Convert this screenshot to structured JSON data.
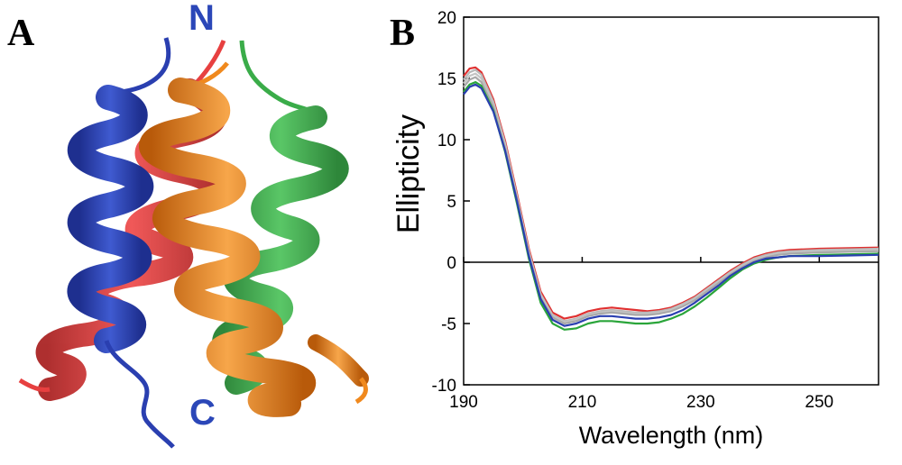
{
  "panel_a": {
    "letter": "A",
    "n_label": "N",
    "c_label": "C",
    "colors": {
      "helix1": "#2a3fb0",
      "helix2": "#e63030",
      "helix3": "#2aa53a",
      "helix4": "#f0891e",
      "label": "#2b47b8"
    },
    "structure": "four-helix-bundle ribbon"
  },
  "panel_b": {
    "letter": "B"
  },
  "chart_data": {
    "type": "line",
    "title": "",
    "xlabel": "Wavelength (nm)",
    "ylabel": "Ellipticity",
    "xlim": [
      190,
      260
    ],
    "ylim": [
      -10,
      20
    ],
    "x_ticks": [
      190,
      210,
      230,
      250
    ],
    "y_ticks": [
      -10,
      -5,
      0,
      5,
      10,
      15,
      20
    ],
    "grid": false,
    "zero_line": true,
    "x": [
      190,
      191,
      192,
      193,
      195,
      197,
      199,
      201,
      203,
      205,
      207,
      209,
      211,
      213,
      215,
      217,
      219,
      221,
      223,
      225,
      227,
      229,
      231,
      233,
      235,
      237,
      239,
      241,
      243,
      245,
      250,
      255,
      260
    ],
    "series": [
      {
        "color": "#e03030",
        "values": [
          15.2,
          15.8,
          15.9,
          15.5,
          13.3,
          9.9,
          5.6,
          1.1,
          -2.4,
          -4.1,
          -4.6,
          -4.4,
          -4.0,
          -3.8,
          -3.7,
          -3.8,
          -3.9,
          -4.0,
          -3.9,
          -3.7,
          -3.3,
          -2.8,
          -2.1,
          -1.4,
          -0.7,
          -0.1,
          0.4,
          0.7,
          0.9,
          1.0,
          1.1,
          1.15,
          1.2
        ]
      },
      {
        "color": "#b8b8b8",
        "values": [
          14.9,
          15.5,
          15.7,
          15.3,
          13.1,
          9.7,
          5.4,
          0.9,
          -2.6,
          -4.3,
          -4.8,
          -4.6,
          -4.2,
          -4.0,
          -3.9,
          -4.0,
          -4.1,
          -4.1,
          -4.0,
          -3.8,
          -3.4,
          -2.9,
          -2.2,
          -1.5,
          -0.8,
          -0.2,
          0.3,
          0.6,
          0.8,
          0.9,
          1.0,
          1.05,
          1.1
        ]
      },
      {
        "color": "#c4c4c4",
        "values": [
          14.6,
          15.2,
          15.4,
          15.0,
          12.9,
          9.5,
          5.3,
          0.8,
          -2.7,
          -4.4,
          -4.9,
          -4.7,
          -4.3,
          -4.1,
          -4.0,
          -4.1,
          -4.2,
          -4.2,
          -4.1,
          -3.9,
          -3.5,
          -3.0,
          -2.3,
          -1.6,
          -0.9,
          -0.3,
          0.2,
          0.5,
          0.7,
          0.8,
          0.9,
          0.95,
          1.0
        ]
      },
      {
        "color": "#a9a9a9",
        "values": [
          14.3,
          14.9,
          15.1,
          14.7,
          12.7,
          9.3,
          5.1,
          0.6,
          -2.9,
          -4.5,
          -5.0,
          -4.8,
          -4.4,
          -4.2,
          -4.1,
          -4.2,
          -4.3,
          -4.3,
          -4.2,
          -4.0,
          -3.6,
          -3.1,
          -2.4,
          -1.7,
          -1.0,
          -0.4,
          0.1,
          0.4,
          0.6,
          0.7,
          0.8,
          0.85,
          0.9
        ]
      },
      {
        "color": "#2aa53a",
        "values": [
          13.9,
          14.5,
          14.7,
          14.4,
          12.4,
          9.0,
          4.8,
          0.3,
          -3.3,
          -5.0,
          -5.5,
          -5.4,
          -5.0,
          -4.8,
          -4.8,
          -4.9,
          -5.0,
          -5.0,
          -4.9,
          -4.6,
          -4.2,
          -3.6,
          -2.9,
          -2.1,
          -1.3,
          -0.6,
          -0.1,
          0.2,
          0.4,
          0.5,
          0.6,
          0.65,
          0.7
        ]
      },
      {
        "color": "#2a3fb0",
        "values": [
          13.7,
          14.3,
          14.5,
          14.2,
          12.3,
          9.1,
          5.0,
          0.5,
          -3.0,
          -4.7,
          -5.2,
          -5.0,
          -4.6,
          -4.4,
          -4.4,
          -4.5,
          -4.6,
          -4.6,
          -4.5,
          -4.3,
          -3.9,
          -3.3,
          -2.6,
          -1.9,
          -1.1,
          -0.5,
          0.0,
          0.3,
          0.4,
          0.5,
          0.5,
          0.55,
          0.6
        ]
      }
    ]
  }
}
